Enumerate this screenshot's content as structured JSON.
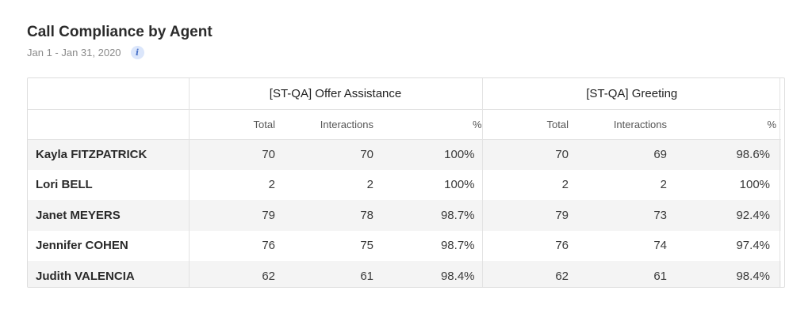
{
  "header": {
    "title": "Call Compliance by Agent",
    "date_range": "Jan 1 - Jan 31, 2020",
    "info_icon": "i"
  },
  "table": {
    "groups": [
      {
        "label": "[ST-QA] Offer Assistance"
      },
      {
        "label": "[ST-QA] Greeting"
      }
    ],
    "subheaders": [
      "Total",
      "Interactions",
      "%"
    ],
    "rows": [
      {
        "agent": "Kayla FITZPATRICK",
        "g1": {
          "total": "70",
          "interactions": "70",
          "pct": "100%"
        },
        "g2": {
          "total": "70",
          "interactions": "69",
          "pct": "98.6%"
        }
      },
      {
        "agent": "Lori BELL",
        "g1": {
          "total": "2",
          "interactions": "2",
          "pct": "100%"
        },
        "g2": {
          "total": "2",
          "interactions": "2",
          "pct": "100%"
        }
      },
      {
        "agent": "Janet MEYERS",
        "g1": {
          "total": "79",
          "interactions": "78",
          "pct": "98.7%"
        },
        "g2": {
          "total": "79",
          "interactions": "73",
          "pct": "92.4%"
        }
      },
      {
        "agent": "Jennifer COHEN",
        "g1": {
          "total": "76",
          "interactions": "75",
          "pct": "98.7%"
        },
        "g2": {
          "total": "76",
          "interactions": "74",
          "pct": "97.4%"
        }
      },
      {
        "agent": "Judith VALENCIA",
        "g1": {
          "total": "62",
          "interactions": "61",
          "pct": "98.4%"
        },
        "g2": {
          "total": "62",
          "interactions": "61",
          "pct": "98.4%"
        }
      }
    ]
  }
}
